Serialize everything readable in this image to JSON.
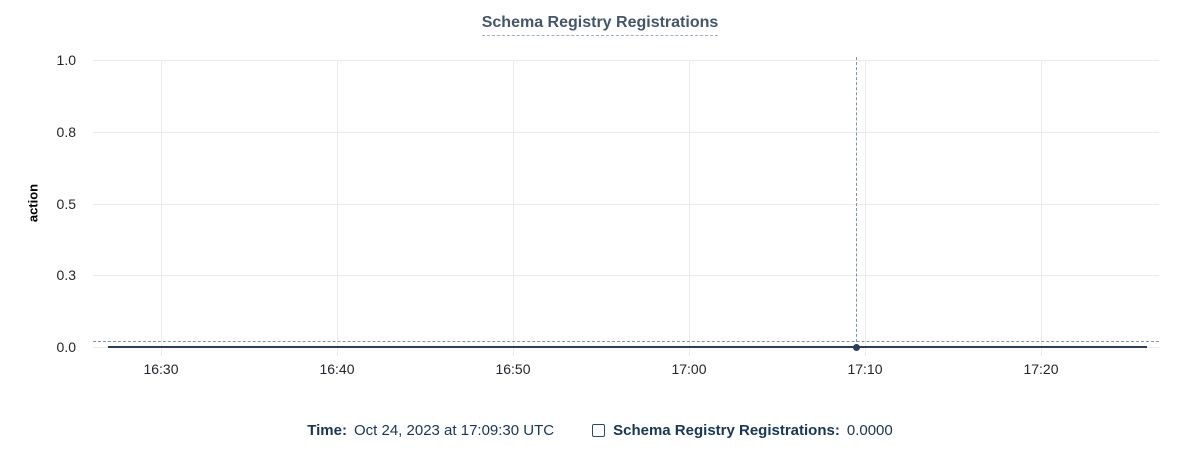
{
  "chart_data": {
    "type": "line",
    "title": "Schema Registry Registrations",
    "xlabel": "",
    "ylabel": "action",
    "x_ticks": [
      "16:30",
      "16:40",
      "16:50",
      "17:00",
      "17:10",
      "17:20"
    ],
    "x_tick_interval_minutes": 10,
    "y_ticks": [
      "1.0",
      "0.8",
      "0.5",
      "0.3",
      "0.0"
    ],
    "ylim": [
      0,
      1
    ],
    "grid": true,
    "legend_position": "bottom",
    "series": [
      {
        "name": "Schema Registry Registrations",
        "points": [
          {
            "x": "16:27",
            "y": 0
          },
          {
            "x": "17:26",
            "y": 0
          }
        ]
      }
    ],
    "cursor": {
      "x": "17:09:30",
      "y": 0.0
    }
  },
  "footer": {
    "time_label": "Time:",
    "time_value": "Oct 24, 2023 at 17:09:30 UTC",
    "series_checkbox_state": "unchecked",
    "series_label": "Schema Registry Registrations:",
    "series_value": "0.0000"
  },
  "colors": {
    "title": "#44566e",
    "title_underline": "#9fafc2",
    "axis_text": "#23262c",
    "grid": "#ebebed",
    "series_line": "#2a3f5c",
    "crosshair": "#7e93a8",
    "footer_text": "#16365c",
    "checkbox_border": "#2c4a68",
    "background": "#ffffff"
  }
}
